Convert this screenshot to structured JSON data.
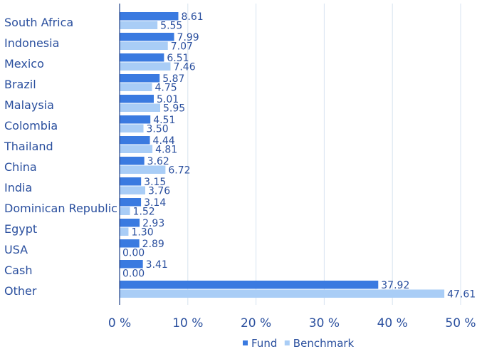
{
  "chart_data": {
    "type": "bar",
    "orientation": "horizontal",
    "categories": [
      "South Africa",
      "Indonesia",
      "Mexico",
      "Brazil",
      "Malaysia",
      "Colombia",
      "Thailand",
      "China",
      "India",
      "Dominican Republic",
      "Egypt",
      "USA",
      "Cash",
      "Other"
    ],
    "series": [
      {
        "name": "Fund",
        "color": "#3a7ae0",
        "values": [
          8.61,
          7.99,
          6.51,
          5.87,
          5.01,
          4.51,
          4.44,
          3.62,
          3.15,
          3.14,
          2.93,
          2.89,
          3.41,
          37.92
        ]
      },
      {
        "name": "Benchmark",
        "color": "#a9cdf6",
        "values": [
          5.55,
          7.07,
          7.46,
          4.75,
          5.95,
          3.5,
          4.81,
          6.72,
          3.76,
          1.52,
          1.3,
          0.0,
          0.0,
          47.61
        ]
      }
    ],
    "value_labels": {
      "Fund": [
        "8.61",
        "7.99",
        "6.51",
        "5.87",
        "5.01",
        "4.51",
        "4.44",
        "3.62",
        "3.15",
        "3.14",
        "2.93",
        "2.89",
        "3.41",
        "37.92"
      ],
      "Benchmark": [
        "5.55",
        "7.07",
        "7.46",
        "4.75",
        "5.95",
        "3.50",
        "4.81",
        "6.72",
        "3.76",
        "1.52",
        "1.30",
        "0.00",
        "0.00",
        "47.61"
      ]
    },
    "xlim": [
      0,
      50
    ],
    "xticks": [
      0,
      10,
      20,
      30,
      40,
      50
    ],
    "xtick_labels": [
      "0 %",
      "10 %",
      "20 %",
      "30 %",
      "40 %",
      "50 %"
    ],
    "grid": true,
    "legend_position": "bottom-center"
  }
}
